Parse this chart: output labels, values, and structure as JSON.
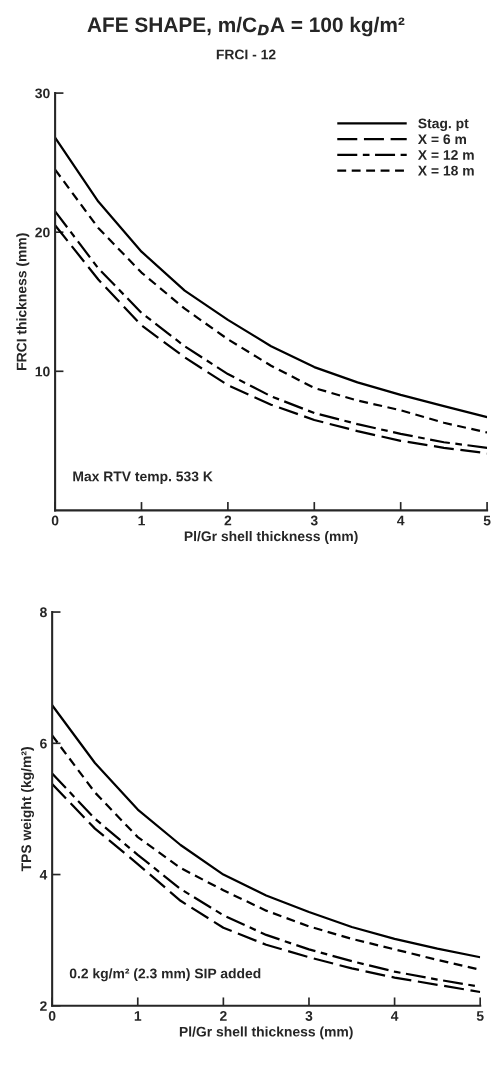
{
  "chart_data": [
    {
      "type": "line",
      "title": "AFE SHAPE, m/C$_{D}$A = 100 kg/m²",
      "subtitle": "FRCI - 12",
      "xlabel": "Pl/Gr shell thickness (mm)",
      "ylabel": "FRCI thickness (mm)",
      "x": [
        0,
        0.5,
        1,
        1.5,
        2,
        2.5,
        3,
        3.5,
        4,
        4.5,
        5
      ],
      "xlim": [
        0,
        5
      ],
      "xticks": [
        0,
        1,
        2,
        3,
        4,
        5
      ],
      "ylim": [
        0,
        30
      ],
      "yticks": [
        10,
        20,
        30
      ],
      "grid": false,
      "legend": "top right",
      "annotations": [
        "Max RTV temp. 533 K"
      ],
      "series": [
        {
          "name": "Stag. pt",
          "color": "#000000",
          "line_style": "solid",
          "values": [
            26.8,
            22.2,
            18.6,
            15.8,
            13.7,
            11.8,
            10.3,
            9.2,
            8.3,
            7.5,
            6.7
          ]
        },
        {
          "name": "X = 6 m",
          "color": "#000000",
          "line_style": "longdash",
          "values": [
            20.5,
            16.6,
            13.3,
            11.0,
            9.0,
            7.6,
            6.5,
            5.7,
            5.0,
            4.5,
            4.1
          ]
        },
        {
          "name": "X = 12 m",
          "color": "#000000",
          "line_style": "dashdot",
          "values": [
            21.5,
            17.4,
            14.2,
            11.8,
            9.8,
            8.2,
            7.0,
            6.2,
            5.5,
            4.9,
            4.5
          ]
        },
        {
          "name": "X = 18 m",
          "color": "#000000",
          "line_style": "dashed",
          "values": [
            24.5,
            20.3,
            17.1,
            14.5,
            12.3,
            10.4,
            8.8,
            7.9,
            7.2,
            6.3,
            5.6
          ]
        }
      ]
    },
    {
      "type": "line",
      "xlabel": "Pl/Gr shell thickness (mm)",
      "ylabel": "TPS weight (kg/m²)",
      "x": [
        0,
        0.5,
        1,
        1.5,
        2,
        2.5,
        3,
        3.5,
        4,
        4.5,
        5
      ],
      "xlim": [
        0,
        5
      ],
      "xticks": [
        0,
        1,
        2,
        3,
        4,
        5
      ],
      "ylim": [
        2,
        8
      ],
      "yticks": [
        2,
        4,
        6,
        8
      ],
      "grid": false,
      "annotations": [
        "0.2 kg/m² (2.3 mm) SIP added"
      ],
      "series": [
        {
          "color": "#000000",
          "line_style": "solid",
          "values": [
            6.58,
            5.7,
            4.99,
            4.45,
            4.0,
            3.68,
            3.43,
            3.2,
            3.02,
            2.87,
            2.74
          ]
        },
        {
          "color": "#000000",
          "line_style": "longdash",
          "values": [
            5.38,
            4.7,
            4.16,
            3.6,
            3.19,
            2.93,
            2.74,
            2.57,
            2.43,
            2.32,
            2.21
          ]
        },
        {
          "color": "#000000",
          "line_style": "dashdot",
          "values": [
            5.54,
            4.85,
            4.3,
            3.78,
            3.38,
            3.08,
            2.86,
            2.68,
            2.52,
            2.4,
            2.29
          ]
        },
        {
          "color": "#000000",
          "line_style": "dashed",
          "values": [
            6.12,
            5.25,
            4.57,
            4.1,
            3.76,
            3.45,
            3.21,
            3.02,
            2.86,
            2.7,
            2.55
          ]
        }
      ]
    }
  ]
}
